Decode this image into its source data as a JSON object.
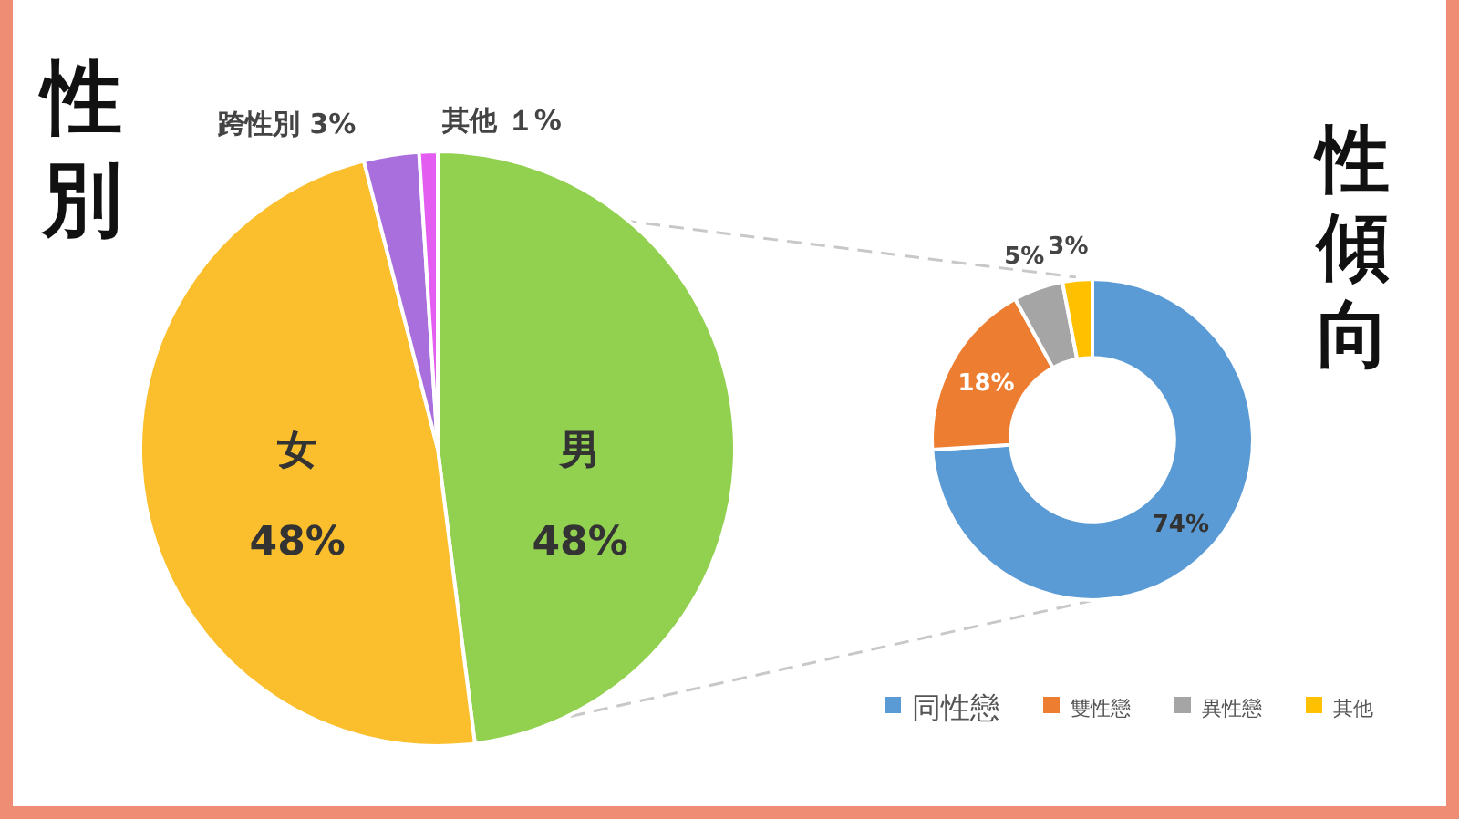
{
  "chart_data": [
    {
      "type": "pie",
      "title": "性別",
      "categories": [
        "男",
        "女",
        "跨性別",
        "其他"
      ],
      "values": [
        48,
        48,
        3,
        1
      ],
      "colors": [
        "#92d050",
        "#fbbf2d",
        "#a86fdd",
        "#e35ef0"
      ],
      "value_labels": [
        "48%",
        "48%",
        "3%",
        "１%"
      ]
    },
    {
      "type": "donut",
      "title": "性傾向",
      "categories": [
        "同性戀",
        "雙性戀",
        "異性戀",
        "其他"
      ],
      "values": [
        74,
        18,
        5,
        3
      ],
      "colors": [
        "#5b9bd5",
        "#ed7d31",
        "#a5a5a5",
        "#ffc000"
      ],
      "value_labels": [
        "74%",
        "18%",
        "5%",
        "3%"
      ],
      "legend": "bottom"
    }
  ]
}
